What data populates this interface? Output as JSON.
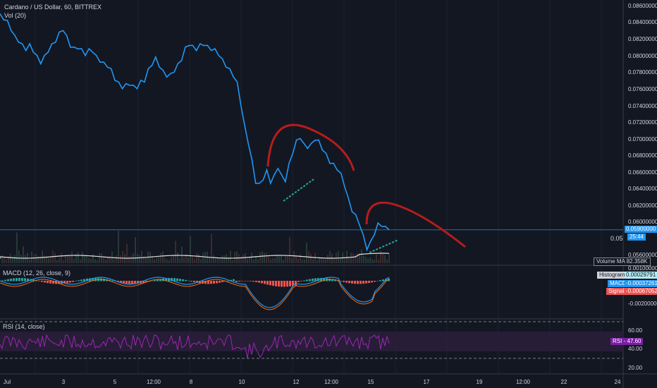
{
  "header": {
    "title": "Cardano / US Dollar, 60, BITTREX",
    "volume_indicator": "Vol (20)"
  },
  "price_axis": {
    "ticks": [
      "0.08600000",
      "0.08400000",
      "0.08200000",
      "0.08000000",
      "0.07800000",
      "0.07600000",
      "0.07400000",
      "0.07200000",
      "0.07000000",
      "0.06800000",
      "0.06600000",
      "0.06400000",
      "0.06200000",
      "0.06000000",
      "0.05600000"
    ],
    "current_price": "0.05900000",
    "countdown": "25:44",
    "partial_label": "0.05"
  },
  "volume_ma": {
    "label": "Volume MA",
    "value": "82.358K"
  },
  "macd": {
    "title": "MACD (12, 26, close, 9)",
    "histogram_label": "Histogram",
    "histogram_value": "0.00029791",
    "macd_label": "MACD",
    "macd_value": "-0.00037261",
    "signal_label": "Signal",
    "signal_value": "-0.00067052",
    "axis_ticks": [
      "0.00100000",
      "0.00000000",
      "-0.00200000"
    ]
  },
  "rsi": {
    "title": "RSI (14, close)",
    "label": "RSI",
    "value": "47.60",
    "axis_ticks": [
      "60.00",
      "40.00",
      "20.00"
    ]
  },
  "time_axis": [
    "Jul",
    "3",
    "5",
    "12:00",
    "8",
    "10",
    "12",
    "12:00",
    "15",
    "17",
    "19",
    "12:00",
    "22",
    "24"
  ],
  "colors": {
    "background": "#131722",
    "price_line": "#2196f3",
    "annotation_arc": "#b71c1c",
    "annotation_trend": "#26a69a",
    "rsi_line": "#9c27b0",
    "macd_line": "#2196f3",
    "signal_line": "#ff6d00",
    "hist_pos": "#26a69a",
    "hist_neg": "#ef5350"
  },
  "chart_data": {
    "type": "line",
    "title": "Cardano / US Dollar, 60, BITTREX",
    "ylim": [
      0.0555,
      0.0865
    ],
    "x_range": [
      "Jul",
      "24"
    ],
    "series": [
      {
        "name": "",
        "values": [
          0.0848,
          0.0845,
          0.084,
          0.0832,
          0.0822,
          0.0818,
          0.0812,
          0.0808,
          0.0812,
          0.0806,
          0.0798,
          0.0792,
          0.0798,
          0.0806,
          0.0812,
          0.0818,
          0.0826,
          0.0832,
          0.0822,
          0.0812,
          0.0808,
          0.081,
          0.0806,
          0.0802,
          0.0806,
          0.0806,
          0.0798,
          0.0794,
          0.079,
          0.0788,
          0.0782,
          0.0772,
          0.0766,
          0.0762,
          0.0764,
          0.0766,
          0.0762,
          0.0762,
          0.0768,
          0.077,
          0.0782,
          0.079,
          0.0796,
          0.0788,
          0.078,
          0.0776,
          0.0776,
          0.0782,
          0.0788,
          0.0796,
          0.0808,
          0.0814,
          0.081,
          0.0808,
          0.0812,
          0.0814,
          0.081,
          0.0808,
          0.0806,
          0.0802,
          0.0794,
          0.0788,
          0.0782,
          0.0776,
          0.0766,
          0.0742,
          0.0714,
          0.0696,
          0.0672,
          0.0648,
          0.0644,
          0.0652,
          0.066,
          0.0648,
          0.0654,
          0.0666,
          0.0654,
          0.065,
          0.0668,
          0.0684,
          0.0696,
          0.0702,
          0.0692,
          0.069,
          0.0692,
          0.07,
          0.0696,
          0.0688,
          0.068,
          0.0672,
          0.0668,
          0.0664,
          0.0656,
          0.0644,
          0.0626,
          0.0614,
          0.0606,
          0.0598,
          0.0582,
          0.0568,
          0.0574,
          0.0586,
          0.0596,
          0.0596,
          0.0592,
          0.0592
        ]
      }
    ],
    "current_price": 0.059,
    "volume_ma": "82.358K",
    "macd": {
      "histogram": 0.00029791,
      "macd": -0.00037261,
      "signal": -0.00067052
    },
    "rsi": {
      "value": 47.6,
      "bands": [
        30,
        70
      ]
    }
  }
}
